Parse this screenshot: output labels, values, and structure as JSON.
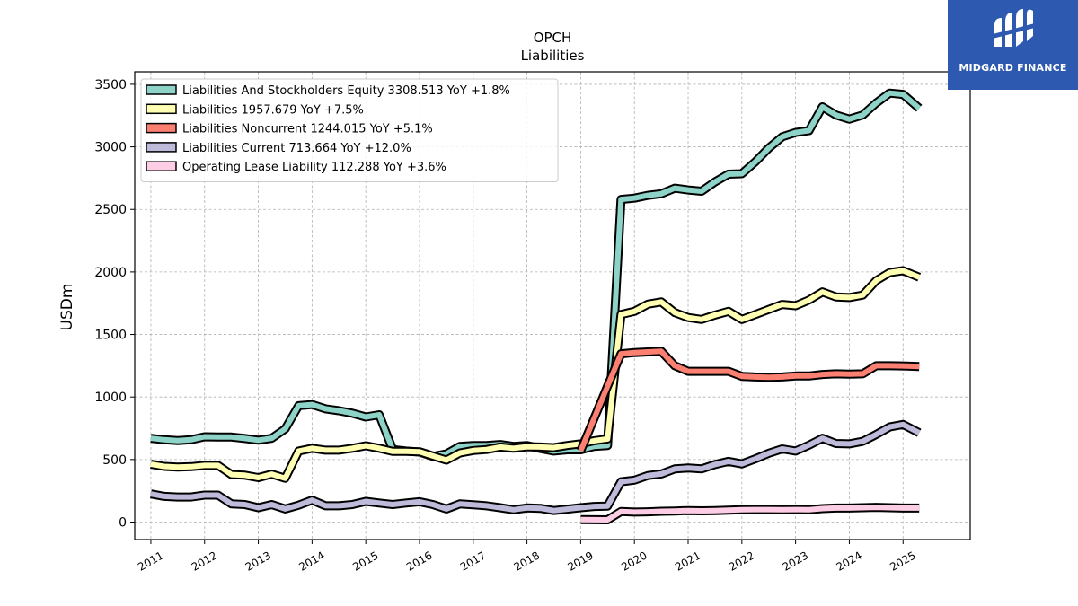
{
  "brand": {
    "name": "MIDGARD FINANCE",
    "bg_color": "#2d5ab0"
  },
  "chart_data": {
    "type": "line",
    "title": "OPCH",
    "subtitle": "Liabilities",
    "xlabel": "",
    "ylabel": "USDm",
    "xlim": [
      2010.7,
      2026.25
    ],
    "ylim": [
      -140,
      3600
    ],
    "x_ticks": [
      2011,
      2012,
      2013,
      2014,
      2015,
      2016,
      2017,
      2018,
      2019,
      2020,
      2021,
      2022,
      2023,
      2024,
      2025
    ],
    "x_tick_labels": [
      "2011",
      "2012",
      "2013",
      "2014",
      "2015",
      "2016",
      "2017",
      "2018",
      "2019",
      "2020",
      "2021",
      "2022",
      "2023",
      "2024",
      "2025"
    ],
    "y_ticks": [
      0,
      500,
      1000,
      1500,
      2000,
      2500,
      3000,
      3500
    ],
    "y_tick_labels": [
      "0",
      "500",
      "1000",
      "1500",
      "2000",
      "2500",
      "3000",
      "3500"
    ],
    "grid": true,
    "legend_position": "top-left",
    "series": [
      {
        "name": "Liabilities And Stockholders Equity",
        "legend_label": "Liabilities And Stockholders Equity  3308.513 YoY +1.8%",
        "color": "#8dd3c7",
        "x": [
          2011.0,
          2011.25,
          2011.5,
          2011.75,
          2012.0,
          2012.25,
          2012.5,
          2012.75,
          2013.0,
          2013.25,
          2013.5,
          2013.75,
          2014.0,
          2014.25,
          2014.5,
          2014.75,
          2015.0,
          2015.25,
          2015.5,
          2015.75,
          2016.0,
          2016.25,
          2016.5,
          2016.75,
          2017.0,
          2017.25,
          2017.5,
          2017.75,
          2018.0,
          2018.25,
          2018.5,
          2018.75,
          2019.0,
          2019.25,
          2019.5,
          2019.75,
          2020.0,
          2020.25,
          2020.5,
          2020.75,
          2021.0,
          2021.25,
          2021.5,
          2021.75,
          2022.0,
          2022.25,
          2022.5,
          2022.75,
          2023.0,
          2023.25,
          2023.5,
          2023.75,
          2024.0,
          2024.25,
          2024.5,
          2024.75,
          2025.0,
          2025.3
        ],
        "values": [
          670,
          658,
          652,
          658,
          682,
          680,
          680,
          668,
          655,
          670,
          745,
          930,
          940,
          905,
          890,
          870,
          840,
          858,
          580,
          568,
          560,
          525,
          545,
          605,
          612,
          612,
          620,
          605,
          612,
          588,
          568,
          578,
          578,
          605,
          612,
          2580,
          2590,
          2612,
          2625,
          2670,
          2655,
          2645,
          2720,
          2782,
          2785,
          2880,
          2990,
          3080,
          3115,
          3130,
          3320,
          3255,
          3222,
          3255,
          3350,
          3430,
          3420,
          3308.513
        ]
      },
      {
        "name": "Liabilities",
        "legend_label": "Liabilities  1957.679 YoY +7.5%",
        "color": "#ffffb3",
        "x": [
          2011.0,
          2011.25,
          2011.5,
          2011.75,
          2012.0,
          2012.25,
          2012.5,
          2012.75,
          2013.0,
          2013.25,
          2013.5,
          2013.75,
          2014.0,
          2014.25,
          2014.5,
          2014.75,
          2015.0,
          2015.25,
          2015.5,
          2015.75,
          2016.0,
          2016.25,
          2016.5,
          2016.75,
          2017.0,
          2017.25,
          2017.5,
          2017.75,
          2018.0,
          2018.25,
          2018.5,
          2018.75,
          2019.0,
          2019.25,
          2019.5,
          2019.75,
          2020.0,
          2020.25,
          2020.5,
          2020.75,
          2021.0,
          2021.25,
          2021.5,
          2021.75,
          2022.0,
          2022.25,
          2022.5,
          2022.75,
          2023.0,
          2023.25,
          2023.5,
          2023.75,
          2024.0,
          2024.25,
          2024.5,
          2024.75,
          2025.0,
          2025.3
        ],
        "values": [
          462,
          445,
          440,
          443,
          453,
          453,
          380,
          375,
          355,
          383,
          350,
          568,
          590,
          575,
          575,
          590,
          610,
          590,
          565,
          565,
          562,
          528,
          495,
          552,
          572,
          580,
          600,
          590,
          602,
          600,
          595,
          612,
          625,
          650,
          665,
          1660,
          1685,
          1742,
          1760,
          1675,
          1635,
          1620,
          1655,
          1685,
          1620,
          1660,
          1700,
          1740,
          1730,
          1775,
          1840,
          1800,
          1795,
          1815,
          1930,
          1995,
          2010,
          1957.679
        ]
      },
      {
        "name": "Liabilities Noncurrent",
        "legend_label": "Liabilities Noncurrent  1244.015 YoY +5.1%",
        "color": "#fb8072",
        "x": [
          2019.0,
          2019.75,
          2020.0,
          2020.25,
          2020.5,
          2020.75,
          2021.0,
          2021.25,
          2021.5,
          2021.75,
          2022.0,
          2022.25,
          2022.5,
          2022.75,
          2023.0,
          2023.25,
          2023.5,
          2023.75,
          2024.0,
          2024.25,
          2024.5,
          2024.75,
          2025.0,
          2025.3
        ],
        "values": [
          570,
          1345,
          1355,
          1360,
          1365,
          1250,
          1205,
          1205,
          1205,
          1205,
          1165,
          1160,
          1158,
          1160,
          1168,
          1168,
          1180,
          1185,
          1183,
          1185,
          1250,
          1250,
          1248,
          1244.015
        ]
      },
      {
        "name": "Liabilities Current",
        "legend_label": "Liabilities Current  713.664 YoY +12.0%",
        "color": "#bebada",
        "x": [
          2011.0,
          2011.25,
          2011.5,
          2011.75,
          2012.0,
          2012.25,
          2012.5,
          2012.75,
          2013.0,
          2013.25,
          2013.5,
          2013.75,
          2014.0,
          2014.25,
          2014.5,
          2014.75,
          2015.0,
          2015.25,
          2015.5,
          2015.75,
          2016.0,
          2016.25,
          2016.5,
          2016.75,
          2017.0,
          2017.25,
          2017.5,
          2017.75,
          2018.0,
          2018.25,
          2018.5,
          2018.75,
          2019.0,
          2019.25,
          2019.5,
          2019.75,
          2020.0,
          2020.25,
          2020.5,
          2020.75,
          2021.0,
          2021.25,
          2021.5,
          2021.75,
          2022.0,
          2022.25,
          2022.5,
          2022.75,
          2023.0,
          2023.25,
          2023.5,
          2023.75,
          2024.0,
          2024.25,
          2024.5,
          2024.75,
          2025.0,
          2025.3
        ],
        "values": [
          225,
          205,
          200,
          200,
          215,
          215,
          145,
          140,
          115,
          140,
          105,
          135,
          175,
          130,
          130,
          140,
          165,
          152,
          140,
          152,
          162,
          140,
          105,
          145,
          138,
          130,
          115,
          98,
          113,
          110,
          92,
          103,
          115,
          125,
          128,
          322,
          335,
          372,
          385,
          425,
          432,
          425,
          460,
          485,
          465,
          505,
          550,
          585,
          568,
          615,
          670,
          628,
          625,
          645,
          700,
          760,
          780,
          713.664
        ]
      },
      {
        "name": "Operating Lease Liability",
        "legend_label": "Operating Lease Liability  112.288 YoY +3.6%",
        "color": "#fccde5",
        "x": [
          2019.0,
          2019.5,
          2019.75,
          2020.0,
          2020.25,
          2020.5,
          2020.75,
          2021.0,
          2021.25,
          2021.5,
          2021.75,
          2022.0,
          2022.25,
          2022.5,
          2022.75,
          2023.0,
          2023.25,
          2023.5,
          2023.75,
          2024.0,
          2024.25,
          2024.5,
          2024.75,
          2025.0,
          2025.3
        ],
        "values": [
          20,
          18,
          85,
          80,
          82,
          86,
          88,
          92,
          90,
          92,
          95,
          98,
          100,
          100,
          98,
          100,
          98,
          108,
          112,
          112,
          115,
          118,
          115,
          112,
          112.288
        ]
      }
    ]
  }
}
